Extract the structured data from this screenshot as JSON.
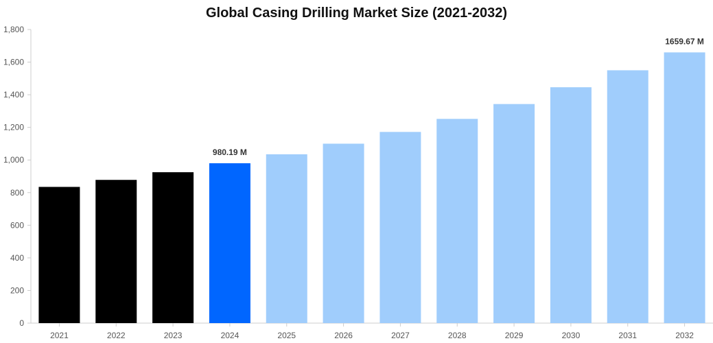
{
  "chart_data": {
    "type": "bar",
    "title": "Global Casing Drilling Market Size (2021-2032)",
    "xlabel": "",
    "ylabel": "",
    "categories": [
      "2021",
      "2022",
      "2023",
      "2024",
      "2025",
      "2026",
      "2027",
      "2028",
      "2029",
      "2030",
      "2031",
      "2032"
    ],
    "values": [
      835,
      878,
      925,
      980.19,
      1035,
      1100,
      1172,
      1252,
      1343,
      1446,
      1550,
      1659.67
    ],
    "ylim": [
      0,
      1800
    ],
    "yticks": [
      0,
      200,
      400,
      600,
      800,
      1000,
      1200,
      1400,
      1600,
      1800
    ],
    "ytick_labels": [
      "0",
      "200",
      "400",
      "600",
      "800",
      "1,000",
      "1,200",
      "1,400",
      "1,600",
      "1,800"
    ],
    "bar_colors": [
      "#000000",
      "#000000",
      "#000000",
      "#0066ff",
      "#a0cdfc",
      "#a0cdfc",
      "#a0cdfc",
      "#a0cdfc",
      "#a0cdfc",
      "#a0cdfc",
      "#a0cdfc",
      "#a0cdfc"
    ],
    "data_labels": [
      {
        "index": 3,
        "text": "980.19 M"
      },
      {
        "index": 11,
        "text": "1659.67 M"
      }
    ],
    "grid": false,
    "legend": "none"
  }
}
